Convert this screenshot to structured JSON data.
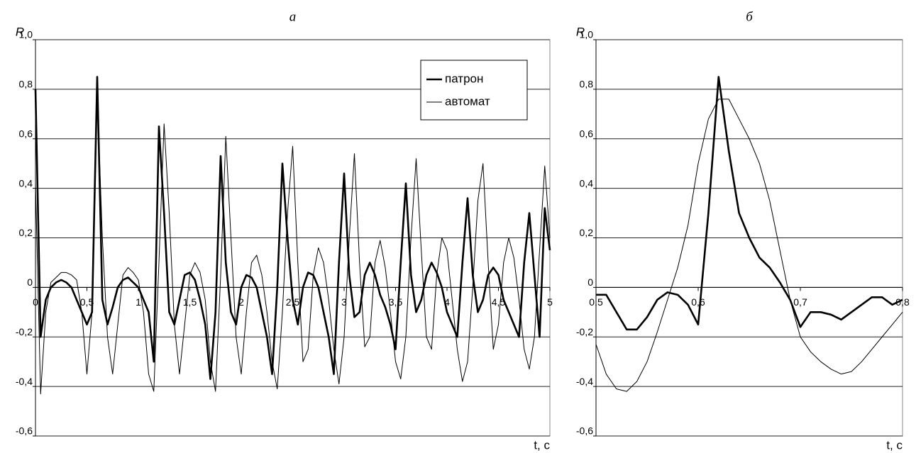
{
  "chart_data": [
    {
      "type": "line",
      "title": "а",
      "y_label": "R",
      "x_label": "t, с",
      "x": [
        0,
        0.05,
        0.1,
        0.15,
        0.2,
        0.25,
        0.3,
        0.35,
        0.4,
        0.45,
        0.5,
        0.55,
        0.6,
        0.65,
        0.7,
        0.75,
        0.8,
        0.85,
        0.9,
        0.95,
        1,
        1.05,
        1.1,
        1.15,
        1.2,
        1.25,
        1.3,
        1.35,
        1.4,
        1.45,
        1.5,
        1.55,
        1.6,
        1.65,
        1.7,
        1.75,
        1.8,
        1.85,
        1.9,
        1.95,
        2,
        2.05,
        2.1,
        2.15,
        2.2,
        2.25,
        2.3,
        2.35,
        2.4,
        2.45,
        2.5,
        2.55,
        2.6,
        2.65,
        2.7,
        2.75,
        2.8,
        2.85,
        2.9,
        2.95,
        3,
        3.05,
        3.1,
        3.15,
        3.2,
        3.25,
        3.3,
        3.35,
        3.4,
        3.45,
        3.5,
        3.55,
        3.6,
        3.65,
        3.7,
        3.75,
        3.8,
        3.85,
        3.9,
        3.95,
        4,
        4.05,
        4.1,
        4.15,
        4.2,
        4.25,
        4.3,
        4.35,
        4.4,
        4.45,
        4.5,
        4.55,
        4.6,
        4.65,
        4.7,
        4.75,
        4.8,
        4.85,
        4.9,
        4.95,
        5
      ],
      "series": [
        {
          "name": "патрон",
          "color": "#000000",
          "values": [
            0.8,
            -0.2,
            -0.05,
            0,
            0.02,
            0.03,
            0.02,
            0,
            -0.05,
            -0.1,
            -0.15,
            -0.1,
            0.85,
            -0.05,
            -0.15,
            -0.08,
            0,
            0.03,
            0.04,
            0.02,
            0,
            -0.05,
            -0.1,
            -0.3,
            0.65,
            0.3,
            -0.1,
            -0.15,
            -0.05,
            0.05,
            0.06,
            0.03,
            -0.05,
            -0.15,
            -0.37,
            -0.1,
            0.53,
            0.1,
            -0.1,
            -0.15,
            0,
            0.05,
            0.04,
            0,
            -0.1,
            -0.2,
            -0.35,
            0,
            0.5,
            0.2,
            -0.05,
            -0.15,
            0,
            0.06,
            0.05,
            0,
            -0.1,
            -0.2,
            -0.35,
            0.1,
            0.46,
            0.05,
            -0.12,
            -0.1,
            0.05,
            0.1,
            0.05,
            -0.03,
            -0.08,
            -0.15,
            -0.25,
            0.1,
            0.42,
            0.05,
            -0.1,
            -0.05,
            0.05,
            0.1,
            0.06,
            0,
            -0.1,
            -0.15,
            -0.2,
            0.1,
            0.36,
            0.05,
            -0.1,
            -0.05,
            0.05,
            0.08,
            0.05,
            -0.05,
            -0.1,
            -0.15,
            -0.2,
            0.1,
            0.3,
            0.05,
            -0.2,
            0.32,
            0.15
          ]
        },
        {
          "name": "автомат",
          "color": "#000000",
          "values": [
            0.42,
            -0.43,
            -0.1,
            0.02,
            0.04,
            0.06,
            0.06,
            0.05,
            0.03,
            -0.1,
            -0.35,
            -0.1,
            0.78,
            0.2,
            -0.2,
            -0.35,
            -0.15,
            0.05,
            0.08,
            0.06,
            0.03,
            -0.1,
            -0.35,
            -0.42,
            0.1,
            0.66,
            0.3,
            -0.15,
            -0.35,
            -0.15,
            0.05,
            0.1,
            0.06,
            -0.05,
            -0.3,
            -0.42,
            0.05,
            0.61,
            0.2,
            -0.2,
            -0.35,
            -0.1,
            0.1,
            0.13,
            0.05,
            -0.1,
            -0.3,
            -0.41,
            -0.1,
            0.3,
            0.57,
            0.1,
            -0.3,
            -0.25,
            0.05,
            0.16,
            0.1,
            -0.05,
            -0.25,
            -0.39,
            -0.2,
            0.2,
            0.54,
            0.1,
            -0.24,
            -0.2,
            0.1,
            0.19,
            0.08,
            -0.1,
            -0.3,
            -0.37,
            -0.2,
            0.2,
            0.52,
            0.15,
            -0.2,
            -0.25,
            0.05,
            0.2,
            0.15,
            -0.05,
            -0.25,
            -0.38,
            -0.3,
            0,
            0.35,
            0.5,
            0.1,
            -0.25,
            -0.15,
            0.1,
            0.2,
            0.12,
            -0.05,
            -0.25,
            -0.33,
            -0.2,
            0.15,
            0.49,
            0.2
          ]
        }
      ],
      "xlim": [
        0,
        5
      ],
      "xticks": [
        0,
        {
          "value": 0.5,
          "label": "0,5"
        },
        1,
        {
          "value": 1.5,
          "label": "1,5"
        },
        2,
        {
          "value": 2.5,
          "label": "2,5"
        },
        3,
        {
          "value": 3.5,
          "label": "3,5"
        },
        4,
        {
          "value": 4.5,
          "label": "4,5"
        },
        5
      ],
      "ylim": [
        -0.6,
        1.0
      ],
      "yticks": [
        {
          "value": -0.6,
          "label": "-0,6"
        },
        {
          "value": -0.4,
          "label": "-0,4"
        },
        {
          "value": -0.2,
          "label": "-0,2"
        },
        0,
        {
          "value": 0.2,
          "label": "0,2"
        },
        {
          "value": 0.4,
          "label": "0,4"
        },
        {
          "value": 0.6,
          "label": "0,6"
        },
        {
          "value": 0.8,
          "label": "0,8"
        },
        {
          "value": 1.0,
          "label": "1,0"
        }
      ],
      "grid": true,
      "legend": "upper right"
    },
    {
      "type": "line",
      "title": "б",
      "y_label": "R",
      "x_label": "t, с",
      "x": [
        0.5,
        0.51,
        0.52,
        0.53,
        0.54,
        0.55,
        0.56,
        0.57,
        0.58,
        0.59,
        0.6,
        0.61,
        0.62,
        0.63,
        0.64,
        0.65,
        0.66,
        0.67,
        0.68,
        0.69,
        0.7,
        0.71,
        0.72,
        0.73,
        0.74,
        0.75,
        0.76,
        0.77,
        0.78,
        0.79,
        0.8
      ],
      "series": [
        {
          "color": "#000000",
          "values": [
            -0.03,
            -0.03,
            -0.1,
            -0.17,
            -0.17,
            -0.12,
            -0.05,
            -0.02,
            -0.03,
            -0.07,
            -0.15,
            0.3,
            0.85,
            0.55,
            0.3,
            0.2,
            0.12,
            0.08,
            0.02,
            -0.05,
            -0.16,
            -0.1,
            -0.1,
            -0.11,
            -0.13,
            -0.1,
            -0.07,
            -0.04,
            -0.04,
            -0.07,
            -0.05
          ]
        },
        {
          "color": "#000000",
          "values": [
            -0.23,
            -0.35,
            -0.41,
            -0.42,
            -0.38,
            -0.3,
            -0.18,
            -0.05,
            0.08,
            0.25,
            0.5,
            0.68,
            0.76,
            0.76,
            0.68,
            0.6,
            0.5,
            0.35,
            0.15,
            -0.05,
            -0.2,
            -0.26,
            -0.3,
            -0.33,
            -0.35,
            -0.34,
            -0.3,
            -0.25,
            -0.2,
            -0.15,
            -0.1
          ]
        }
      ],
      "xlim": [
        0.5,
        0.8
      ],
      "xticks": [
        {
          "value": 0.5,
          "label": "0,5"
        },
        {
          "value": 0.6,
          "label": "0,6"
        },
        {
          "value": 0.7,
          "label": "0,7"
        },
        {
          "value": 0.8,
          "label": "0,8"
        }
      ],
      "ylim": [
        -0.6,
        1.0
      ],
      "yticks": [
        {
          "value": -0.6,
          "label": "-0,6"
        },
        {
          "value": -0.4,
          "label": "-0,4"
        },
        {
          "value": -0.2,
          "label": "-0,2"
        },
        0,
        {
          "value": 0.2,
          "label": "0,2"
        },
        {
          "value": 0.4,
          "label": "0,4"
        },
        {
          "value": 0.6,
          "label": "0,6"
        },
        {
          "value": 0.8,
          "label": "0,8"
        },
        {
          "value": 1.0,
          "label": "1,0"
        }
      ],
      "grid": true
    }
  ]
}
